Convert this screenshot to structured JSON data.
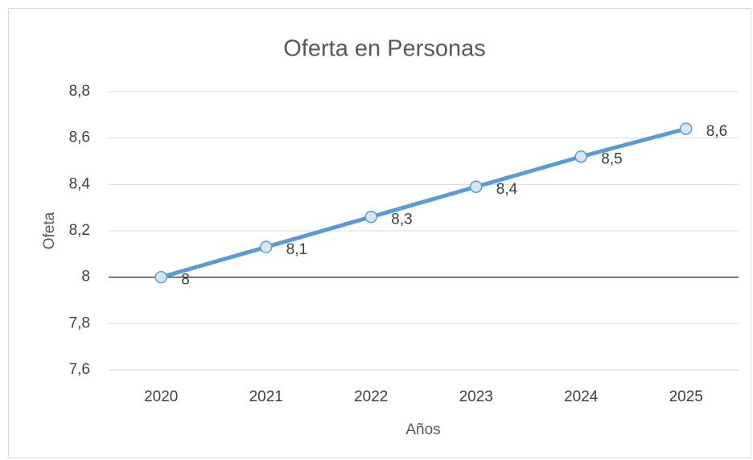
{
  "chart_data": {
    "type": "line",
    "title": "Oferta en Personas",
    "x_label": "Años",
    "y_label": "Ofeta",
    "categories": [
      "2020",
      "2021",
      "2022",
      "2023",
      "2024",
      "2025"
    ],
    "series": [
      {
        "name": "Ofeta",
        "color": "#5b9bd5",
        "values": [
          8.0,
          8.13,
          8.26,
          8.39,
          8.52,
          8.64
        ],
        "value_labels": [
          "8",
          "8,1",
          "8,3",
          "8,4",
          "8,5",
          "8,6"
        ]
      }
    ],
    "ylim": [
      7.6,
      8.8
    ],
    "yticks": [
      {
        "value": 7.6,
        "label": "7,6"
      },
      {
        "value": 7.8,
        "label": "7,8"
      },
      8,
      {
        "value": 8.2,
        "label": "8,2"
      },
      {
        "value": 8.4,
        "label": "8,4"
      },
      {
        "value": 8.6,
        "label": "8,6"
      },
      {
        "value": 8.8,
        "label": "8,8"
      }
    ],
    "grid": true,
    "x_axis_crosses": 8
  }
}
